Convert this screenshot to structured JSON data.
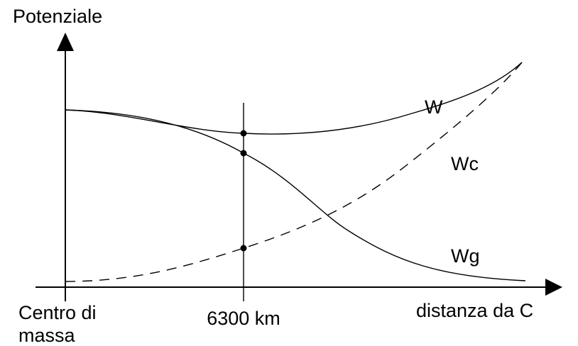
{
  "labels": {
    "y_axis": "Potenziale",
    "x_axis": "distanza da C",
    "origin": [
      "Centro di",
      "massa"
    ],
    "marker": "6300 km"
  },
  "curves": [
    {
      "label": "W"
    },
    {
      "label": "Wc"
    },
    {
      "label": "Wg"
    }
  ]
}
